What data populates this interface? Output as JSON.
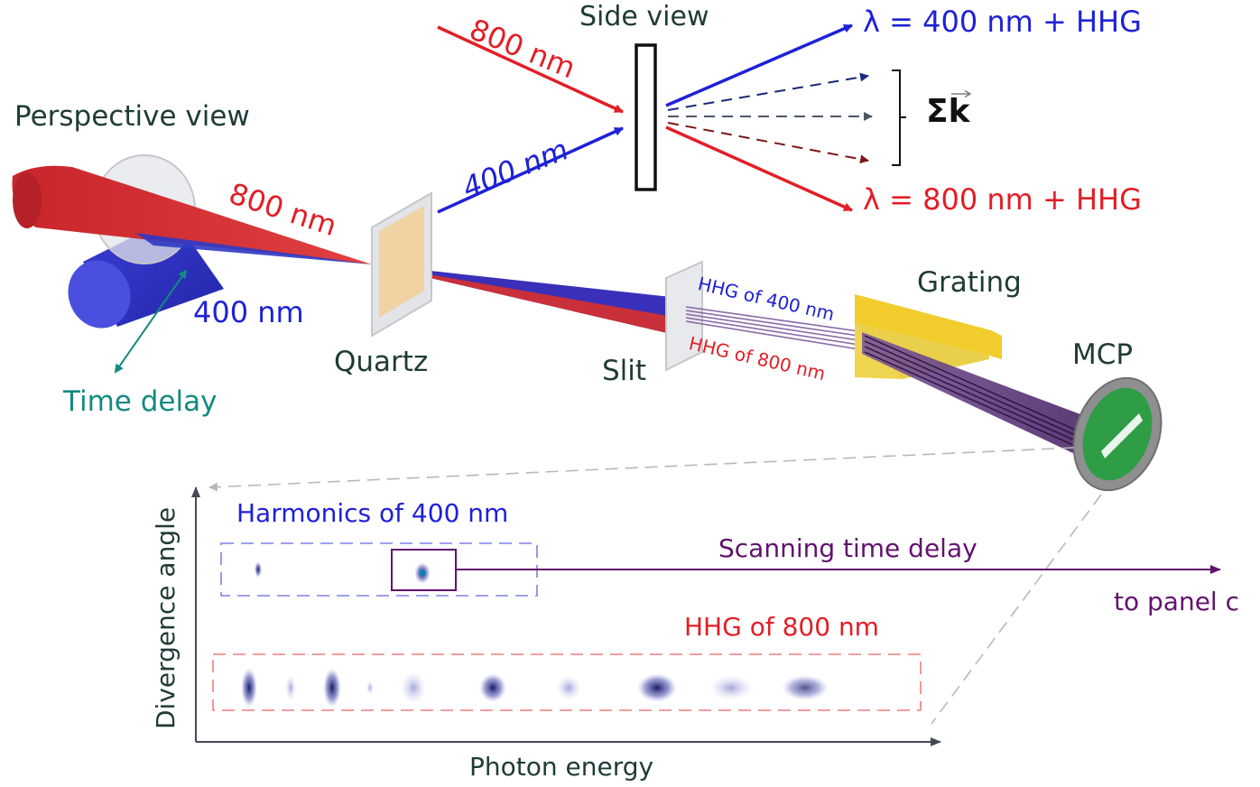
{
  "side_view": {
    "title": "Side view",
    "beam_800": "800 nm",
    "beam_400": "400 nm",
    "out_400": "λ = 400 nm + HHG",
    "out_800": "λ = 800 nm + HHG",
    "sum_symbol": "Σk"
  },
  "perspective": {
    "title": "Perspective view",
    "beam_800": "800 nm",
    "beam_400": "400 nm",
    "time_delay": "Time delay",
    "quartz": "Quartz",
    "slit": "Slit",
    "hhg_400": "HHG of 400 nm",
    "hhg_800": "HHG of 800 nm",
    "grating": "Grating",
    "mcp": "MCP"
  },
  "spectrum": {
    "y_axis": "Divergence angle",
    "x_axis": "Photon energy",
    "harmonics_400": "Harmonics of 400 nm",
    "hhg_800": "HHG of 800 nm",
    "scanning": "Scanning time delay",
    "to_panel": "to panel c"
  },
  "colors": {
    "red": "#e21e26",
    "blue": "#1e21d6",
    "teal": "#138a80",
    "purple": "#62126e",
    "dark": "#1f3b36",
    "grating": "#f2cc2c",
    "mcp_ring": "#9a9a9a",
    "mcp_screen": "#2e9d46"
  }
}
